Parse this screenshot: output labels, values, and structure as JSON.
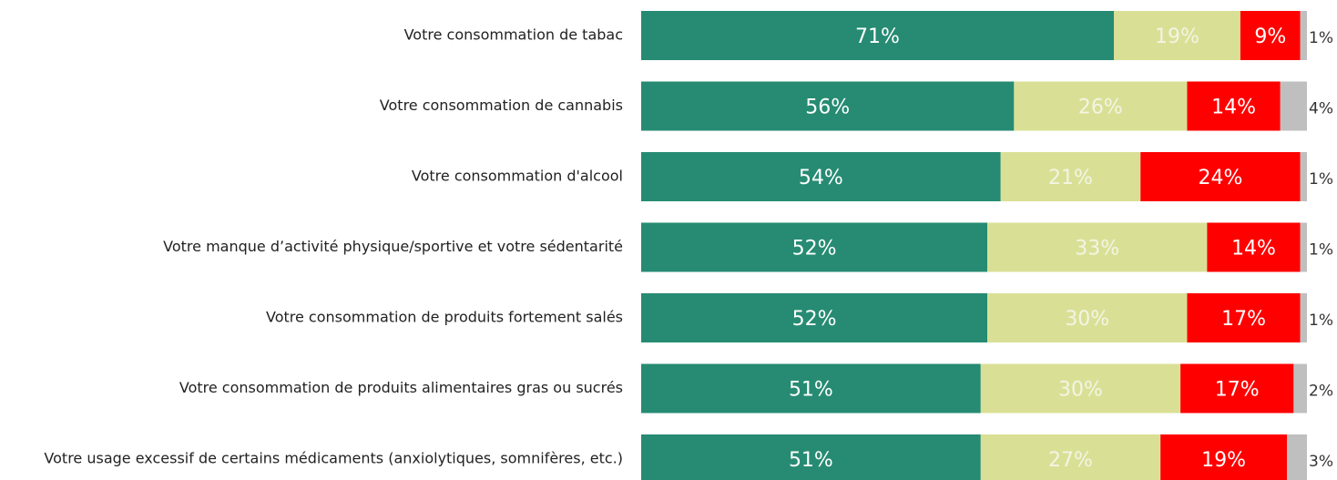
{
  "chart_data": {
    "type": "stacked-barh",
    "categories": [
      "Votre consommation de tabac",
      "Votre consommation de cannabis",
      "Votre consommation d'alcool",
      "Votre manque d’activité physique/sportive et votre sédentarité",
      "Votre consommation de produits fortement salés",
      "Votre consommation de produits alimentaires gras ou sucrés",
      "Votre usage excessif de certains médicaments (anxiolytiques, somnifères, etc.)"
    ],
    "series": [
      {
        "color": "#268b72",
        "values": [
          71,
          56,
          54,
          52,
          52,
          51,
          51
        ],
        "value_labels": [
          "71%",
          "56%",
          "54%",
          "52%",
          "52%",
          "51%",
          "51%"
        ]
      },
      {
        "color": "#d9e096",
        "values": [
          19,
          26,
          21,
          33,
          30,
          30,
          27
        ],
        "value_labels": [
          "19%",
          "26%",
          "21%",
          "33%",
          "30%",
          "30%",
          "27%"
        ]
      },
      {
        "color": "#ff0000",
        "values": [
          9,
          14,
          24,
          14,
          17,
          17,
          19
        ],
        "value_labels": [
          "9%",
          "14%",
          "24%",
          "14%",
          "17%",
          "17%",
          "19%"
        ]
      },
      {
        "color": "#bfbfbf",
        "values": [
          1,
          4,
          1,
          1,
          1,
          2,
          3
        ],
        "value_labels": [
          "1%",
          "4%",
          "1%",
          "1%",
          "1%",
          "2%",
          "3%"
        ]
      }
    ],
    "xlim": [
      0,
      100
    ]
  }
}
